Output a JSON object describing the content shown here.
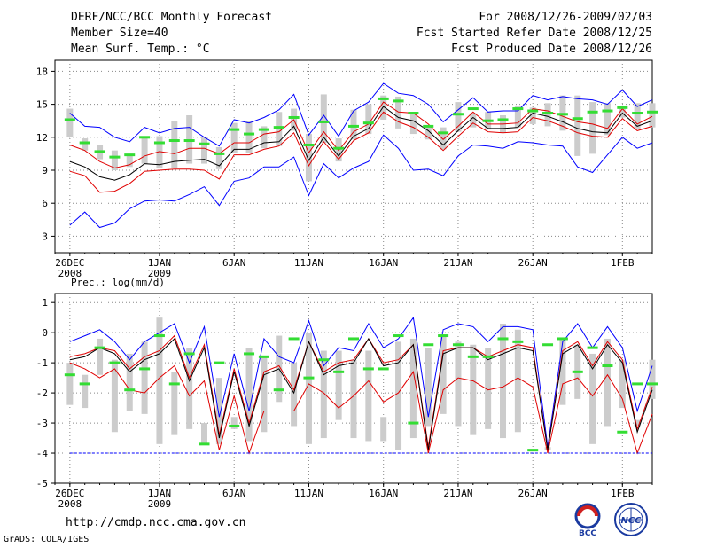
{
  "header": {
    "title": "DERF/NCC/BCC Monthly Forecast",
    "member_size": "Member Size=40",
    "variable": "Mean Surf. Temp.: °C",
    "period": "For 2008/12/26-2009/02/03",
    "refer_date": "Fcst Started Refer Date 2008/12/25",
    "produced_date": "Fcst Produced Date 2008/12/26"
  },
  "footer": {
    "url": "http://cmdp.ncc.cma.gov.cn",
    "credit": "GrADS: COLA/IGES",
    "logo_bcc_text": "BCC",
    "logo_ncc_text": "NCC"
  },
  "colors": {
    "max_line": "#0000ff",
    "spread_line": "#e00000",
    "mean_line": "#000000",
    "box": "#cccccc",
    "median": "#33dd33",
    "grid": "#888888"
  },
  "chart_data": [
    {
      "type": "line",
      "title": "Mean Surf. Temp.: °C",
      "ylim": [
        1.5,
        19
      ],
      "yticks": [
        3,
        6,
        9,
        12,
        15,
        18
      ],
      "x_ticks": [
        {
          "day": 0,
          "label": "26DEC",
          "sub": "2008"
        },
        {
          "day": 6,
          "label": "1JAN",
          "sub": "2009"
        },
        {
          "day": 11,
          "label": "6JAN",
          "sub": ""
        },
        {
          "day": 16,
          "label": "11JAN",
          "sub": ""
        },
        {
          "day": 21,
          "label": "16JAN",
          "sub": ""
        },
        {
          "day": 26,
          "label": "21JAN",
          "sub": ""
        },
        {
          "day": 31,
          "label": "26JAN",
          "sub": ""
        },
        {
          "day": 37,
          "label": "1FEB",
          "sub": ""
        }
      ],
      "xlim": [
        -1,
        39
      ],
      "series": [
        {
          "name": "max",
          "color": "#0000ff",
          "values": [
            14.2,
            13.0,
            12.9,
            12.0,
            11.6,
            12.9,
            12.4,
            12.8,
            12.9,
            12.0,
            11.2,
            13.6,
            13.3,
            13.8,
            14.5,
            15.9,
            12.2,
            14.0,
            12.1,
            14.4,
            15.2,
            16.9,
            16.0,
            15.8,
            15.0,
            13.4,
            14.5,
            15.6,
            14.3,
            14.4,
            14.4,
            15.8,
            15.4,
            15.7,
            15.5,
            15.4,
            15.0,
            16.3,
            14.8,
            15.4
          ]
        },
        {
          "name": "upper",
          "color": "#e00000",
          "values": [
            11.3,
            10.8,
            9.8,
            9.2,
            9.5,
            10.3,
            10.7,
            10.5,
            11.0,
            11.0,
            10.5,
            11.5,
            11.5,
            12.3,
            12.5,
            13.6,
            10.6,
            12.5,
            10.8,
            12.5,
            13.2,
            15.2,
            14.3,
            14.2,
            13.2,
            11.8,
            13.0,
            14.3,
            13.2,
            13.2,
            13.3,
            14.6,
            14.4,
            13.9,
            13.4,
            13.2,
            12.8,
            14.6,
            13.2,
            13.9
          ]
        },
        {
          "name": "mean",
          "color": "#000000",
          "values": [
            9.8,
            9.3,
            8.4,
            8.1,
            8.6,
            9.6,
            9.5,
            9.8,
            9.9,
            10.0,
            9.4,
            10.9,
            10.9,
            11.5,
            11.6,
            13.0,
            9.9,
            12.0,
            10.3,
            12.1,
            12.8,
            14.8,
            13.8,
            13.5,
            12.6,
            11.3,
            12.6,
            13.8,
            12.8,
            12.8,
            12.9,
            14.2,
            13.9,
            13.4,
            12.8,
            12.5,
            12.4,
            14.2,
            13.0,
            13.5
          ]
        },
        {
          "name": "lower",
          "color": "#e00000",
          "values": [
            8.9,
            8.5,
            7.0,
            7.1,
            7.8,
            8.9,
            9.0,
            9.1,
            9.1,
            9.0,
            8.2,
            10.4,
            10.4,
            10.9,
            11.2,
            12.4,
            9.4,
            11.6,
            10.0,
            11.7,
            12.4,
            14.3,
            13.4,
            12.9,
            12.0,
            10.8,
            12.1,
            13.3,
            12.5,
            12.4,
            12.5,
            13.8,
            13.5,
            13.0,
            12.4,
            12.1,
            12.0,
            13.7,
            12.6,
            13.0
          ]
        },
        {
          "name": "min",
          "color": "#0000ff",
          "values": [
            4.0,
            5.2,
            3.8,
            4.2,
            5.5,
            6.2,
            6.3,
            6.2,
            6.8,
            7.5,
            5.8,
            8.0,
            8.3,
            9.3,
            9.3,
            10.2,
            6.7,
            9.6,
            8.3,
            9.2,
            9.8,
            12.2,
            11.0,
            9.0,
            9.1,
            8.5,
            10.3,
            11.3,
            11.2,
            11.0,
            11.6,
            11.5,
            11.3,
            11.2,
            9.3,
            8.8,
            10.4,
            12.0,
            11.0,
            11.5
          ]
        }
      ],
      "boxes": {
        "low": [
          12.0,
          10.8,
          10.0,
          9.0,
          9.3,
          9.6,
          9.2,
          9.2,
          9.6,
          9.6,
          9.1,
          10.6,
          10.6,
          11.0,
          11.2,
          12.6,
          8.0,
          11.5,
          9.8,
          11.8,
          12.3,
          13.6,
          12.8,
          12.3,
          11.8,
          10.9,
          12.5,
          12.9,
          12.7,
          12.4,
          12.9,
          13.2,
          13.0,
          12.6,
          10.3,
          10.5,
          12.2,
          13.8,
          12.8,
          12.9
        ],
        "high": [
          14.6,
          11.9,
          11.3,
          10.8,
          10.5,
          11.9,
          12.1,
          13.5,
          14.0,
          12.0,
          11.1,
          13.3,
          13.5,
          13.0,
          14.3,
          14.6,
          12.3,
          15.9,
          11.9,
          14.5,
          15.0,
          15.8,
          15.7,
          14.3,
          13.1,
          12.9,
          15.2,
          14.2,
          14.3,
          14.0,
          14.8,
          14.7,
          15.1,
          15.8,
          15.8,
          15.2,
          15.1,
          14.7,
          15.1,
          15.1
        ],
        "median": [
          13.6,
          11.5,
          10.7,
          10.2,
          10.4,
          12.0,
          11.5,
          11.7,
          11.7,
          11.4,
          10.5,
          12.7,
          12.3,
          12.7,
          12.9,
          13.8,
          11.3,
          13.4,
          11.0,
          13.0,
          13.3,
          15.5,
          15.3,
          14.2,
          13.0,
          12.4,
          14.1,
          14.6,
          13.5,
          13.6,
          14.6,
          14.4,
          14.2,
          14.1,
          13.7,
          14.3,
          14.4,
          14.7,
          14.2,
          14.3
        ]
      }
    },
    {
      "type": "line",
      "title": "Prec.: log(mm/d)",
      "ylim": [
        -5,
        1.3
      ],
      "yticks": [
        -5,
        -4,
        -3,
        -2,
        -1,
        0,
        1
      ],
      "x_ticks": [
        {
          "day": 0,
          "label": "26DEC",
          "sub": "2008"
        },
        {
          "day": 6,
          "label": "1JAN",
          "sub": "2009"
        },
        {
          "day": 11,
          "label": "6JAN",
          "sub": ""
        },
        {
          "day": 16,
          "label": "11JAN",
          "sub": ""
        },
        {
          "day": 21,
          "label": "16JAN",
          "sub": ""
        },
        {
          "day": 26,
          "label": "21JAN",
          "sub": ""
        },
        {
          "day": 31,
          "label": "26JAN",
          "sub": ""
        },
        {
          "day": 37,
          "label": "1FEB",
          "sub": ""
        }
      ],
      "xlim": [
        -1,
        39
      ],
      "series": [
        {
          "name": "max",
          "color": "#0000ff",
          "values": [
            -0.3,
            -0.1,
            0.1,
            -0.3,
            -0.9,
            -0.3,
            0.0,
            0.3,
            -1.0,
            0.2,
            -2.8,
            -0.7,
            -2.6,
            -0.2,
            -0.8,
            -1.0,
            0.4,
            -1.1,
            -0.5,
            -0.6,
            0.3,
            -0.5,
            -0.2,
            0.5,
            -2.8,
            0.1,
            0.3,
            0.2,
            -0.3,
            0.2,
            0.2,
            0.1,
            -3.8,
            -0.3,
            0.3,
            -0.5,
            0.2,
            -0.5,
            -2.6,
            -1.1
          ]
        },
        {
          "name": "upper",
          "color": "#e00000",
          "values": [
            -0.8,
            -0.7,
            -0.5,
            -0.6,
            -1.2,
            -0.8,
            -0.6,
            -0.1,
            -1.5,
            -0.4,
            -3.4,
            -1.2,
            -3.0,
            -1.3,
            -1.1,
            -1.9,
            -0.3,
            -1.3,
            -1.0,
            -0.9,
            -0.2,
            -1.0,
            -0.9,
            -0.4,
            -3.8,
            -0.6,
            -0.5,
            -0.5,
            -0.8,
            -0.6,
            -0.4,
            -0.5,
            -3.9,
            -0.6,
            -0.3,
            -1.1,
            -0.3,
            -0.9,
            -3.2,
            -1.8
          ]
        },
        {
          "name": "mean",
          "color": "#000000",
          "values": [
            -0.9,
            -0.8,
            -0.5,
            -0.7,
            -1.3,
            -0.9,
            -0.7,
            -0.2,
            -1.6,
            -0.5,
            -3.5,
            -1.3,
            -3.1,
            -1.4,
            -1.2,
            -2.0,
            -0.3,
            -1.4,
            -1.1,
            -1.0,
            -0.2,
            -1.1,
            -1.0,
            -0.4,
            -3.9,
            -0.7,
            -0.5,
            -0.5,
            -0.9,
            -0.7,
            -0.5,
            -0.6,
            -3.9,
            -0.7,
            -0.4,
            -1.2,
            -0.4,
            -1.0,
            -3.3,
            -1.9
          ]
        },
        {
          "name": "lower",
          "color": "#e00000",
          "values": [
            -1.0,
            -1.2,
            -1.5,
            -1.2,
            -1.9,
            -2.0,
            -1.5,
            -1.1,
            -2.1,
            -1.6,
            -3.9,
            -2.1,
            -4.0,
            -2.6,
            -2.6,
            -2.6,
            -1.7,
            -2.0,
            -2.5,
            -2.1,
            -1.6,
            -2.3,
            -2.0,
            -1.3,
            -4.0,
            -1.9,
            -1.5,
            -1.6,
            -1.9,
            -1.8,
            -1.5,
            -1.8,
            -4.0,
            -1.7,
            -1.5,
            -2.1,
            -1.4,
            -2.2,
            -4.0,
            -2.7
          ]
        },
        {
          "name": "floor",
          "color": "#0000ff",
          "values": [
            -4,
            -4,
            -4,
            -4,
            -4,
            -4,
            -4,
            -4,
            -4,
            -4,
            -4,
            -4,
            -4,
            -4,
            -4,
            -4,
            -4,
            -4,
            -4,
            -4,
            -4,
            -4,
            -4,
            -4,
            -4,
            -4,
            -4,
            -4,
            -4,
            -4,
            -4,
            -4,
            -4,
            -4,
            -4,
            -4,
            -4,
            -4,
            -4,
            -4
          ]
        }
      ],
      "boxes": {
        "low": [
          -2.4,
          -2.5,
          -1.4,
          -3.3,
          -2.6,
          -2.7,
          -3.7,
          -3.4,
          -3.2,
          -3.7,
          -3.7,
          -3.2,
          -3.6,
          -3.3,
          -2.3,
          -3.1,
          -3.7,
          -3.5,
          -2.9,
          -3.5,
          -3.6,
          -3.6,
          -3.9,
          -3.5,
          -3.1,
          -2.7,
          -3.1,
          -3.4,
          -3.2,
          -3.5,
          -3.3,
          -3.0,
          -3.9,
          -2.4,
          -2.2,
          -3.7,
          -3.1,
          -2.5,
          -3.1,
          -2.2
        ],
        "high": [
          -1.0,
          -1.4,
          -0.2,
          -0.9,
          -0.7,
          -0.3,
          0.5,
          -1.3,
          -0.5,
          -3.0,
          -1.5,
          -2.8,
          -0.5,
          -0.8,
          -0.1,
          -1.0,
          0.0,
          -0.6,
          -0.6,
          -0.9,
          -0.6,
          -2.8,
          -0.3,
          -0.2,
          -0.5,
          -0.1,
          -0.3,
          -0.4,
          -0.5,
          0.3,
          0.1,
          -3.0,
          -3.8,
          -0.2,
          -0.4,
          -0.7,
          -0.2,
          -0.9,
          -2.9,
          -0.9
        ],
        "median": [
          -1.4,
          -1.7,
          -0.5,
          -1.0,
          -1.9,
          -1.2,
          -0.1,
          -1.7,
          -0.7,
          -3.7,
          -1.0,
          -3.1,
          -0.7,
          -0.8,
          -1.9,
          -0.2,
          -1.5,
          -0.9,
          -1.3,
          -0.2,
          -1.2,
          -1.2,
          -0.1,
          -3.0,
          -0.4,
          -0.1,
          -0.4,
          -0.8,
          -0.8,
          -0.2,
          -0.3,
          -3.9,
          -0.4,
          -0.2,
          -1.3,
          -0.5,
          -1.1,
          -3.3,
          -1.7,
          -1.7
        ]
      }
    }
  ]
}
